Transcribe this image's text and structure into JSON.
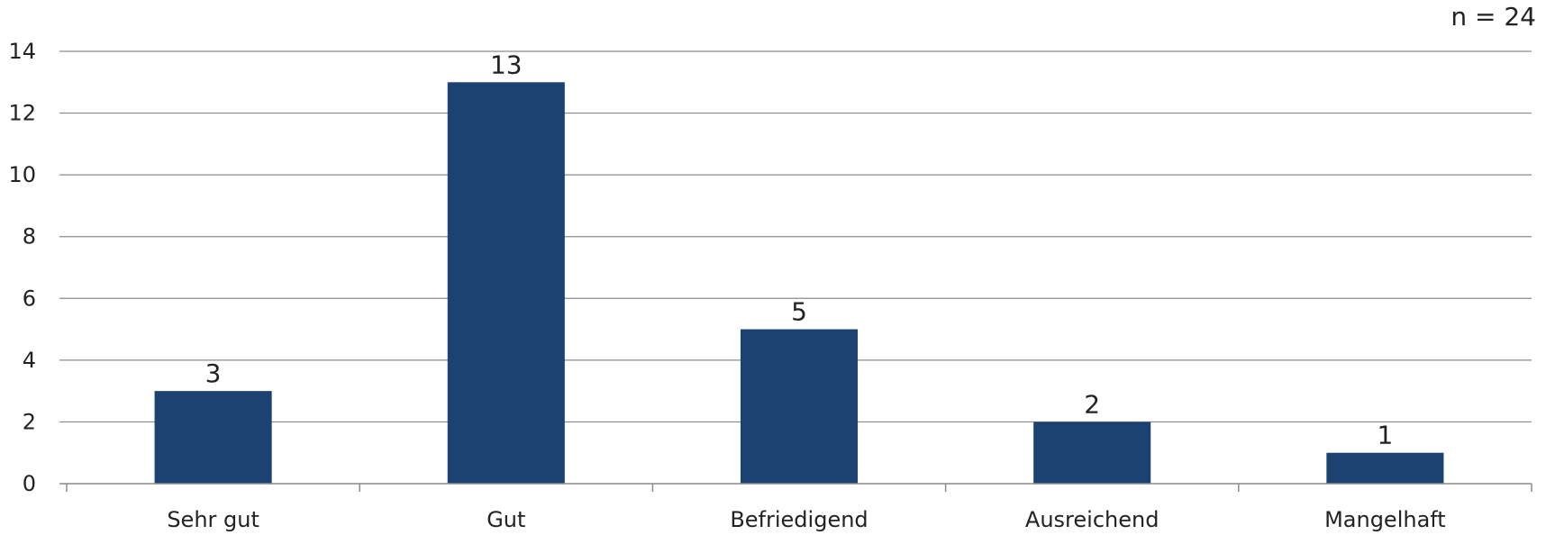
{
  "annotation": "n = 24",
  "colors": {
    "bar": "#1c4272",
    "grid": "#8c8c8c"
  },
  "chart_data": {
    "type": "bar",
    "categories": [
      "Sehr gut",
      "Gut",
      "Befriedigend",
      "Ausreichend",
      "Mangelhaft"
    ],
    "values": [
      3,
      13,
      5,
      2,
      1
    ],
    "ylim": [
      0,
      14
    ],
    "yticks": [
      0,
      2,
      4,
      6,
      8,
      10,
      12,
      14
    ],
    "grid": true,
    "data_labels": true,
    "title": "",
    "xlabel": "",
    "ylabel": ""
  }
}
